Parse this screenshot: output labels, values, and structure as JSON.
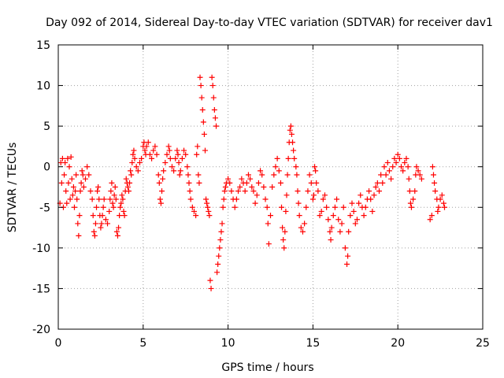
{
  "chart_data": {
    "type": "scatter",
    "title": "Day 092 of 2014, Sidereal Day-to-day VTEC variation (SDTVAR) for receiver dav1",
    "xlabel": "GPS time / hours",
    "ylabel": "SDTVAR / TECUs",
    "xlim": [
      0,
      25
    ],
    "ylim": [
      -20,
      15
    ],
    "xticks": [
      0,
      5,
      10,
      15,
      20,
      25
    ],
    "yticks": [
      -20,
      -15,
      -10,
      -5,
      0,
      5,
      10,
      15
    ],
    "grid": true,
    "marker": "plus",
    "color": "#ff0000",
    "series": [
      {
        "name": "SDTVAR",
        "points": [
          [
            0.1,
            -4.5
          ],
          [
            0.15,
            0.5
          ],
          [
            0.2,
            -2
          ],
          [
            0.25,
            1
          ],
          [
            0.3,
            -5
          ],
          [
            0.35,
            -1
          ],
          [
            0.4,
            0.5
          ],
          [
            0.45,
            -3
          ],
          [
            0.5,
            -4.5
          ],
          [
            0.55,
            1
          ],
          [
            0.6,
            -2
          ],
          [
            0.65,
            0
          ],
          [
            0.7,
            -4
          ],
          [
            0.75,
            1.2
          ],
          [
            0.8,
            -1.5
          ],
          [
            0.85,
            -3.5
          ],
          [
            0.9,
            -2.5
          ],
          [
            0.95,
            -5
          ],
          [
            1.0,
            -3
          ],
          [
            1.05,
            -1
          ],
          [
            1.1,
            -4
          ],
          [
            1.15,
            -7
          ],
          [
            1.2,
            -8.5
          ],
          [
            1.25,
            -6
          ],
          [
            1.3,
            -3
          ],
          [
            1.35,
            -2
          ],
          [
            1.4,
            -0.5
          ],
          [
            1.45,
            -1
          ],
          [
            1.5,
            -2.5
          ],
          [
            1.6,
            -1.5
          ],
          [
            1.7,
            0
          ],
          [
            1.8,
            -1
          ],
          [
            1.9,
            -3
          ],
          [
            2.0,
            -4
          ],
          [
            2.05,
            -6
          ],
          [
            2.1,
            -8
          ],
          [
            2.15,
            -8.5
          ],
          [
            2.2,
            -7
          ],
          [
            2.25,
            -5
          ],
          [
            2.3,
            -3
          ],
          [
            2.35,
            -2.5
          ],
          [
            2.4,
            -4
          ],
          [
            2.45,
            -6
          ],
          [
            2.5,
            -7.5
          ],
          [
            2.55,
            -7
          ],
          [
            2.6,
            -6
          ],
          [
            2.65,
            -5
          ],
          [
            2.7,
            -4
          ],
          [
            2.8,
            -6.5
          ],
          [
            2.9,
            -7
          ],
          [
            3.0,
            -5.5
          ],
          [
            3.05,
            -4
          ],
          [
            3.1,
            -3
          ],
          [
            3.15,
            -2
          ],
          [
            3.2,
            -4.5
          ],
          [
            3.25,
            -5
          ],
          [
            3.3,
            -3.5
          ],
          [
            3.35,
            -2.5
          ],
          [
            3.4,
            -4
          ],
          [
            3.45,
            -8
          ],
          [
            3.5,
            -8.5
          ],
          [
            3.55,
            -7.5
          ],
          [
            3.6,
            -6
          ],
          [
            3.65,
            -5
          ],
          [
            3.7,
            -4.5
          ],
          [
            3.75,
            -3.5
          ],
          [
            3.8,
            -4
          ],
          [
            3.85,
            -5.5
          ],
          [
            3.9,
            -6
          ],
          [
            3.95,
            -3
          ],
          [
            4.0,
            -1.5
          ],
          [
            4.05,
            -2
          ],
          [
            4.1,
            -2.5
          ],
          [
            4.15,
            -3
          ],
          [
            4.2,
            -2
          ],
          [
            4.25,
            -0.5
          ],
          [
            4.3,
            -1
          ],
          [
            4.35,
            0.5
          ],
          [
            4.4,
            1.5
          ],
          [
            4.45,
            2
          ],
          [
            4.5,
            1
          ],
          [
            4.6,
            0
          ],
          [
            4.7,
            -0.5
          ],
          [
            4.8,
            0.5
          ],
          [
            4.9,
            1
          ],
          [
            5.0,
            2.5
          ],
          [
            5.05,
            3
          ],
          [
            5.1,
            2
          ],
          [
            5.15,
            1.5
          ],
          [
            5.2,
            2.5
          ],
          [
            5.3,
            3
          ],
          [
            5.4,
            1.5
          ],
          [
            5.5,
            1
          ],
          [
            5.6,
            2
          ],
          [
            5.7,
            2.5
          ],
          [
            5.8,
            1.5
          ],
          [
            5.9,
            -1
          ],
          [
            5.95,
            -2
          ],
          [
            6.0,
            -4
          ],
          [
            6.05,
            -4.5
          ],
          [
            6.1,
            -3
          ],
          [
            6.15,
            -1.5
          ],
          [
            6.2,
            -0.5
          ],
          [
            6.3,
            0.5
          ],
          [
            6.4,
            1.5
          ],
          [
            6.5,
            2.5
          ],
          [
            6.55,
            2
          ],
          [
            6.6,
            1
          ],
          [
            6.7,
            0
          ],
          [
            6.8,
            -0.5
          ],
          [
            6.9,
            1
          ],
          [
            7.0,
            2
          ],
          [
            7.05,
            1.5
          ],
          [
            7.1,
            0.5
          ],
          [
            7.15,
            -1
          ],
          [
            7.2,
            -0.5
          ],
          [
            7.3,
            1
          ],
          [
            7.4,
            2
          ],
          [
            7.5,
            1.5
          ],
          [
            7.6,
            0
          ],
          [
            7.65,
            -1
          ],
          [
            7.7,
            -2
          ],
          [
            7.75,
            -3
          ],
          [
            7.8,
            -4
          ],
          [
            7.9,
            -5
          ],
          [
            8.0,
            -5.5
          ],
          [
            8.1,
            -6
          ],
          [
            8.15,
            1.5
          ],
          [
            8.2,
            2.5
          ],
          [
            8.25,
            -1
          ],
          [
            8.3,
            -2
          ],
          [
            8.35,
            11
          ],
          [
            8.4,
            10
          ],
          [
            8.45,
            8.5
          ],
          [
            8.5,
            7
          ],
          [
            8.55,
            5.5
          ],
          [
            8.6,
            4
          ],
          [
            8.65,
            2
          ],
          [
            8.7,
            -4
          ],
          [
            8.75,
            -4.5
          ],
          [
            8.8,
            -5
          ],
          [
            8.85,
            -5.5
          ],
          [
            8.9,
            -6
          ],
          [
            8.95,
            -14
          ],
          [
            9.0,
            -15
          ],
          [
            9.05,
            11
          ],
          [
            9.1,
            10
          ],
          [
            9.15,
            8.5
          ],
          [
            9.2,
            7
          ],
          [
            9.25,
            6
          ],
          [
            9.3,
            5
          ],
          [
            9.35,
            -13
          ],
          [
            9.4,
            -12
          ],
          [
            9.45,
            -11
          ],
          [
            9.5,
            -10
          ],
          [
            9.55,
            -9
          ],
          [
            9.6,
            -8
          ],
          [
            9.65,
            -7
          ],
          [
            9.7,
            -5
          ],
          [
            9.75,
            -4
          ],
          [
            9.8,
            -3
          ],
          [
            9.85,
            -2.5
          ],
          [
            9.9,
            -2
          ],
          [
            10.0,
            -1.5
          ],
          [
            10.1,
            -2
          ],
          [
            10.2,
            -3
          ],
          [
            10.3,
            -4
          ],
          [
            10.4,
            -5
          ],
          [
            10.5,
            -4
          ],
          [
            10.6,
            -3
          ],
          [
            10.7,
            -2.5
          ],
          [
            10.8,
            -1.5
          ],
          [
            10.9,
            -2
          ],
          [
            11.0,
            -3
          ],
          [
            11.1,
            -2
          ],
          [
            11.2,
            -1
          ],
          [
            11.3,
            -1.5
          ],
          [
            11.4,
            -2.5
          ],
          [
            11.5,
            -3
          ],
          [
            11.6,
            -4.5
          ],
          [
            11.7,
            -3.5
          ],
          [
            11.8,
            -2
          ],
          [
            11.9,
            -0.5
          ],
          [
            12.0,
            -1
          ],
          [
            12.1,
            -2.5
          ],
          [
            12.2,
            -4
          ],
          [
            12.3,
            -5
          ],
          [
            12.35,
            -7
          ],
          [
            12.4,
            -9.5
          ],
          [
            12.5,
            -6
          ],
          [
            12.6,
            -2.5
          ],
          [
            12.7,
            -1
          ],
          [
            12.8,
            0
          ],
          [
            12.9,
            1
          ],
          [
            13.0,
            -0.5
          ],
          [
            13.1,
            -2
          ],
          [
            13.15,
            -5
          ],
          [
            13.2,
            -7.5
          ],
          [
            13.25,
            -9
          ],
          [
            13.3,
            -10
          ],
          [
            13.35,
            -8
          ],
          [
            13.4,
            -5.5
          ],
          [
            13.45,
            -3.5
          ],
          [
            13.5,
            -1
          ],
          [
            13.55,
            1
          ],
          [
            13.6,
            3
          ],
          [
            13.65,
            4.5
          ],
          [
            13.7,
            5
          ],
          [
            13.75,
            4
          ],
          [
            13.8,
            3
          ],
          [
            13.85,
            2
          ],
          [
            13.9,
            1
          ],
          [
            14.0,
            0
          ],
          [
            14.05,
            -1
          ],
          [
            14.1,
            -3
          ],
          [
            14.15,
            -4.5
          ],
          [
            14.2,
            -6
          ],
          [
            14.3,
            -7.5
          ],
          [
            14.4,
            -8
          ],
          [
            14.5,
            -7
          ],
          [
            14.6,
            -5
          ],
          [
            14.7,
            -3
          ],
          [
            14.8,
            -1
          ],
          [
            14.9,
            -2
          ],
          [
            15.0,
            -4
          ],
          [
            15.05,
            -3.5
          ],
          [
            15.1,
            0
          ],
          [
            15.15,
            -0.5
          ],
          [
            15.2,
            -2
          ],
          [
            15.3,
            -3
          ],
          [
            15.4,
            -6
          ],
          [
            15.5,
            -5.5
          ],
          [
            15.6,
            -4
          ],
          [
            15.7,
            -3.5
          ],
          [
            15.8,
            -5
          ],
          [
            15.9,
            -6.5
          ],
          [
            16.0,
            -8
          ],
          [
            16.05,
            -9
          ],
          [
            16.1,
            -7.5
          ],
          [
            16.2,
            -6
          ],
          [
            16.3,
            -5
          ],
          [
            16.4,
            -4
          ],
          [
            16.5,
            -6.5
          ],
          [
            16.6,
            -8
          ],
          [
            16.7,
            -7
          ],
          [
            16.8,
            -5
          ],
          [
            16.9,
            -10
          ],
          [
            17.0,
            -12
          ],
          [
            17.05,
            -11
          ],
          [
            17.1,
            -8
          ],
          [
            17.2,
            -6
          ],
          [
            17.3,
            -4.5
          ],
          [
            17.4,
            -5.5
          ],
          [
            17.5,
            -7
          ],
          [
            17.6,
            -6.5
          ],
          [
            17.7,
            -4.5
          ],
          [
            17.8,
            -3.5
          ],
          [
            17.9,
            -5
          ],
          [
            18.0,
            -6
          ],
          [
            18.1,
            -5
          ],
          [
            18.2,
            -4
          ],
          [
            18.3,
            -3
          ],
          [
            18.4,
            -4
          ],
          [
            18.5,
            -5.5
          ],
          [
            18.6,
            -3.5
          ],
          [
            18.7,
            -2.5
          ],
          [
            18.8,
            -2
          ],
          [
            18.9,
            -3
          ],
          [
            19.0,
            -1
          ],
          [
            19.1,
            -2
          ],
          [
            19.2,
            0
          ],
          [
            19.3,
            -1
          ],
          [
            19.4,
            0.5
          ],
          [
            19.5,
            -0.5
          ],
          [
            19.6,
            -1.5
          ],
          [
            19.7,
            0
          ],
          [
            19.8,
            1
          ],
          [
            19.9,
            0.5
          ],
          [
            20.0,
            1.5
          ],
          [
            20.1,
            1
          ],
          [
            20.2,
            0
          ],
          [
            20.3,
            -0.5
          ],
          [
            20.4,
            0.5
          ],
          [
            20.5,
            1
          ],
          [
            20.6,
            0
          ],
          [
            20.65,
            -1.5
          ],
          [
            20.7,
            -3
          ],
          [
            20.75,
            -4.5
          ],
          [
            20.8,
            -5
          ],
          [
            20.9,
            -4
          ],
          [
            21.0,
            -3
          ],
          [
            21.05,
            -1
          ],
          [
            21.1,
            0
          ],
          [
            21.2,
            -0.5
          ],
          [
            21.3,
            -1
          ],
          [
            21.4,
            -1.5
          ],
          [
            21.9,
            -6.5
          ],
          [
            22.0,
            -6
          ],
          [
            22.05,
            0
          ],
          [
            22.1,
            -1
          ],
          [
            22.15,
            -2
          ],
          [
            22.2,
            -3
          ],
          [
            22.3,
            -4
          ],
          [
            22.35,
            -5.5
          ],
          [
            22.4,
            -5
          ],
          [
            22.5,
            -4
          ],
          [
            22.6,
            -3.5
          ],
          [
            22.7,
            -4.5
          ],
          [
            22.75,
            -5
          ]
        ]
      }
    ]
  }
}
